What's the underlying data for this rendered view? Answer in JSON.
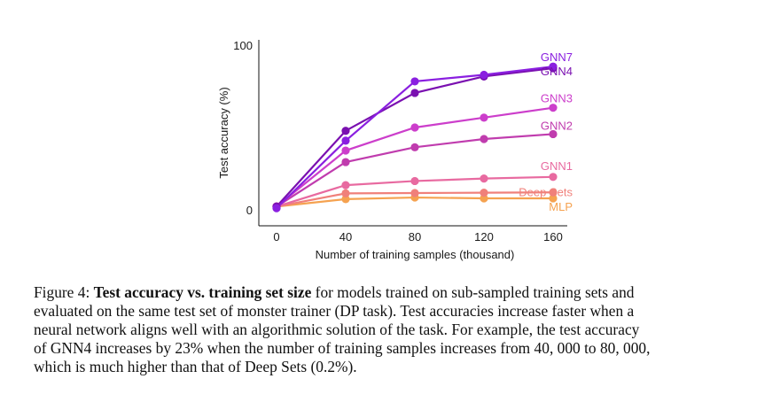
{
  "chart_data": {
    "type": "line",
    "title": "",
    "xlabel": "Number of training samples (thousand)",
    "ylabel": "Test accuracy (%)",
    "x": [
      0,
      40,
      80,
      120,
      160
    ],
    "xticks": [
      "0",
      "40",
      "80",
      "120",
      "160"
    ],
    "yticks": [
      "0",
      "100"
    ],
    "xlim": [
      0,
      160
    ],
    "ylim": [
      0,
      100
    ],
    "grid": false,
    "series": [
      {
        "name": "GNN7",
        "color": "#8a1fe0",
        "values": [
          1,
          42,
          78,
          82,
          87
        ]
      },
      {
        "name": "GNN4",
        "color": "#7a10b0",
        "values": [
          2,
          48,
          71,
          81,
          86
        ]
      },
      {
        "name": "GNN3",
        "color": "#cc3ecb",
        "values": [
          2,
          36,
          50,
          56,
          62
        ]
      },
      {
        "name": "GNN2",
        "color": "#c03cae",
        "values": [
          2,
          29,
          38,
          43,
          46
        ]
      },
      {
        "name": "GNN1",
        "color": "#e86aa0",
        "values": [
          2,
          15,
          17.5,
          19,
          20
        ]
      },
      {
        "name": "Deep Sets",
        "color": "#f0807a",
        "values": [
          2,
          10,
          10.2,
          10.4,
          10.6
        ]
      },
      {
        "name": "MLP",
        "color": "#f5a250",
        "values": [
          2,
          6.5,
          7.5,
          7,
          7
        ]
      }
    ]
  },
  "caption": {
    "label": "Figure 4: ",
    "bold_title": "Test accuracy vs. training set size",
    "line1_rest": " for models trained on sub-sampled training sets and",
    "line2": "evaluated on the same test set of monster trainer (DP task). Test accuracies increase faster when a",
    "line3": "neural network aligns well with an algorithmic solution of the task. For example, the test accuracy",
    "line4": "of GNN4 increases by 23% when the number of training samples increases from 40, 000 to 80, 000,",
    "line5": "which is much higher than that of Deep Sets (0.2%)."
  }
}
